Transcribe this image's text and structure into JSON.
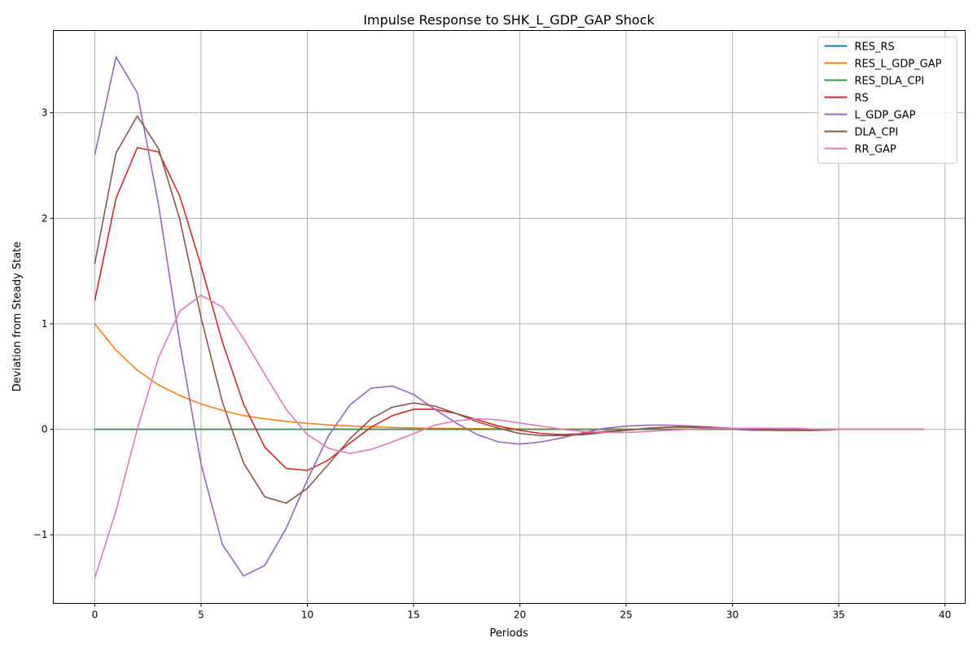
{
  "chart_data": {
    "type": "line",
    "title": "Impulse Response to SHK_L_GDP_GAP Shock",
    "xlabel": "Periods",
    "ylabel": "Deviation from Steady State",
    "xlim": [
      -1.95,
      40.95
    ],
    "ylim": [
      -1.65,
      3.78
    ],
    "xticks": [
      0,
      5,
      10,
      15,
      20,
      25,
      30,
      35,
      40
    ],
    "yticks": [
      -1,
      0,
      1,
      2,
      3
    ],
    "ytick_labels": [
      "−1",
      "0",
      "1",
      "2",
      "3"
    ],
    "grid": true,
    "legend_position": "top-right",
    "x": [
      0,
      1,
      2,
      3,
      4,
      5,
      6,
      7,
      8,
      9,
      10,
      11,
      12,
      13,
      14,
      15,
      16,
      17,
      18,
      19,
      20,
      21,
      22,
      23,
      24,
      25,
      26,
      27,
      28,
      29,
      30,
      31,
      32,
      33,
      34,
      35,
      36,
      37,
      38,
      39
    ],
    "series": [
      {
        "name": "RES_RS",
        "color": "#1f77b4",
        "values": [
          0,
          0,
          0,
          0,
          0,
          0,
          0,
          0,
          0,
          0,
          0,
          0,
          0,
          0,
          0,
          0,
          0,
          0,
          0,
          0,
          0,
          0,
          0,
          0,
          0,
          0,
          0,
          0,
          0,
          0,
          0,
          0,
          0,
          0,
          0,
          0,
          0,
          0,
          0,
          0
        ]
      },
      {
        "name": "RES_L_GDP_GAP",
        "color": "#ff7f0e",
        "values": [
          1.0,
          0.75,
          0.56,
          0.42,
          0.32,
          0.24,
          0.18,
          0.13,
          0.1,
          0.075,
          0.056,
          0.042,
          0.032,
          0.024,
          0.018,
          0.013,
          0.01,
          0.0075,
          0.0056,
          0.0042,
          0.0032,
          0.0024,
          0.0018,
          0.0013,
          0.001,
          0.0008,
          0.0006,
          0.0004,
          0.0003,
          0.0002,
          0.0002,
          0.0001,
          0.0001,
          0,
          0,
          0,
          0,
          0,
          0,
          0
        ]
      },
      {
        "name": "RES_DLA_CPI",
        "color": "#2ca02c",
        "values": [
          0,
          0,
          0,
          0,
          0,
          0,
          0,
          0,
          0,
          0,
          0,
          0,
          0,
          0,
          0,
          0,
          0,
          0,
          0,
          0,
          0,
          0,
          0,
          0,
          0,
          0,
          0,
          0,
          0,
          0,
          0,
          0,
          0,
          0,
          0,
          0,
          0,
          0,
          0,
          0
        ]
      },
      {
        "name": "RS",
        "color": "#d62728",
        "values": [
          1.22,
          2.19,
          2.67,
          2.63,
          2.21,
          1.55,
          0.83,
          0.24,
          -0.17,
          -0.37,
          -0.39,
          -0.29,
          -0.13,
          0.02,
          0.13,
          0.19,
          0.19,
          0.15,
          0.09,
          0.03,
          -0.01,
          -0.04,
          -0.05,
          -0.04,
          -0.02,
          -0.01,
          0.01,
          0.02,
          0.02,
          0.01,
          0.01,
          0,
          -0.01,
          -0.01,
          -0.01,
          0,
          0,
          0,
          0,
          0
        ]
      },
      {
        "name": "L_GDP_GAP",
        "color": "#9467bd",
        "values": [
          2.6,
          3.53,
          3.19,
          2.13,
          0.82,
          -0.33,
          -1.09,
          -1.39,
          -1.29,
          -0.94,
          -0.48,
          -0.06,
          0.23,
          0.39,
          0.41,
          0.33,
          0.19,
          0.06,
          -0.05,
          -0.12,
          -0.14,
          -0.12,
          -0.08,
          -0.03,
          0.01,
          0.03,
          0.04,
          0.04,
          0.03,
          0.01,
          0,
          -0.01,
          -0.01,
          -0.01,
          -0.01,
          0,
          0,
          0,
          0,
          0
        ]
      },
      {
        "name": "DLA_CPI",
        "color": "#8c564b",
        "values": [
          1.57,
          2.62,
          2.97,
          2.66,
          1.99,
          1.06,
          0.26,
          -0.32,
          -0.64,
          -0.7,
          -0.56,
          -0.33,
          -0.09,
          0.1,
          0.21,
          0.25,
          0.22,
          0.15,
          0.07,
          0.01,
          -0.04,
          -0.06,
          -0.06,
          -0.05,
          -0.03,
          -0.01,
          0.01,
          0.02,
          0.03,
          0.02,
          0.01,
          0,
          -0.01,
          -0.01,
          -0.01,
          0,
          0,
          0,
          0,
          0
        ]
      },
      {
        "name": "RR_GAP",
        "color": "#e377c2",
        "values": [
          -1.41,
          -0.77,
          0.0,
          0.68,
          1.12,
          1.27,
          1.16,
          0.86,
          0.52,
          0.19,
          -0.05,
          -0.18,
          -0.23,
          -0.19,
          -0.12,
          -0.04,
          0.04,
          0.08,
          0.1,
          0.09,
          0.06,
          0.03,
          0,
          -0.02,
          -0.03,
          -0.03,
          -0.02,
          -0.01,
          0,
          0.01,
          0.01,
          0.01,
          0.01,
          0.01,
          0,
          0,
          0,
          0,
          0,
          0
        ]
      }
    ]
  }
}
